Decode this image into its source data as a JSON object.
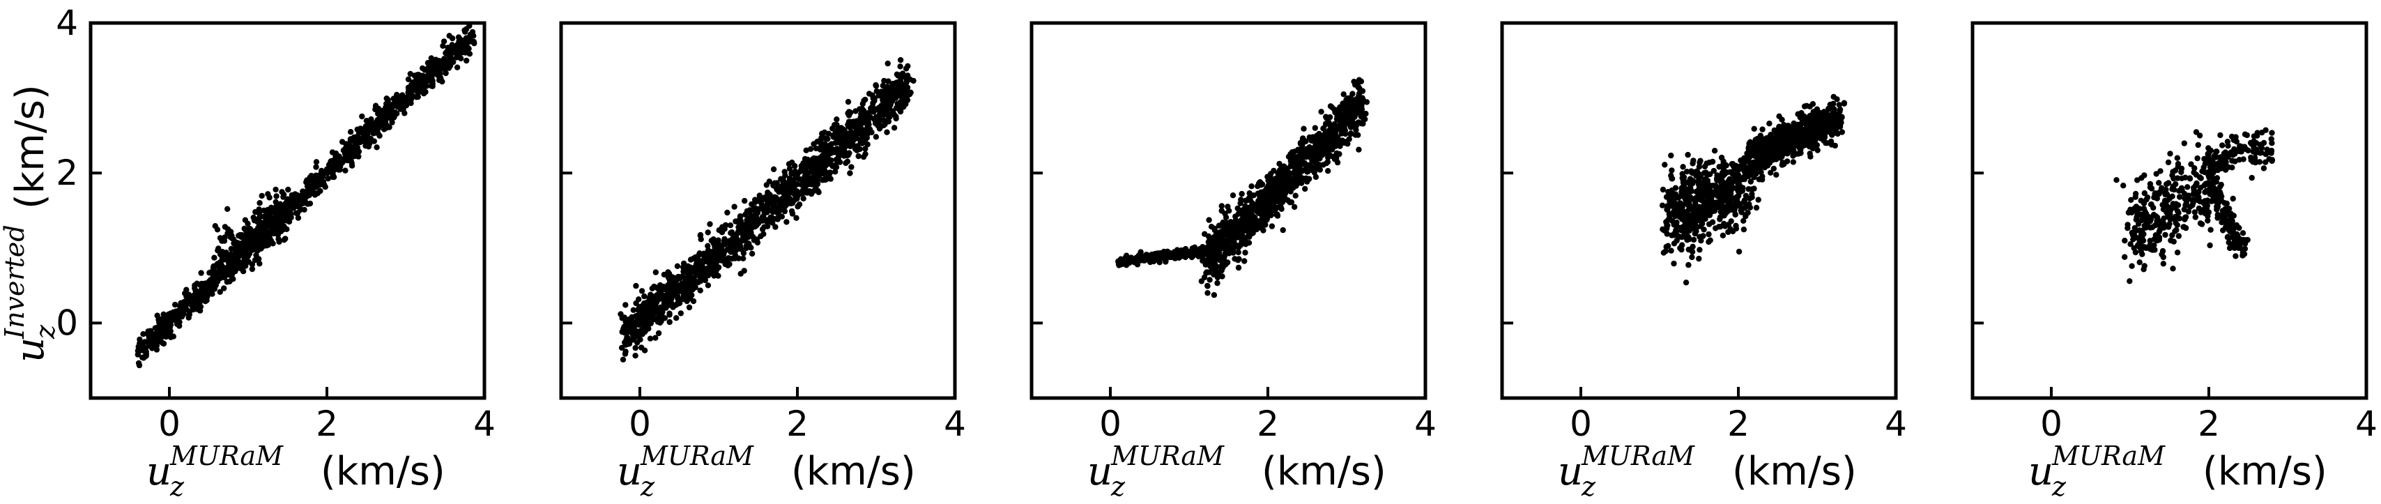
{
  "chart_data": [
    {
      "type": "scatter",
      "panel": 1,
      "xlim": [
        -1,
        4
      ],
      "ylim": [
        -1,
        4
      ],
      "xticks": [
        "0",
        "2",
        "4"
      ],
      "yticks": [
        "0",
        "2",
        "4"
      ],
      "xlabel": {
        "symbol": "u",
        "superscript": "MURaM",
        "subscript": "z",
        "unit": "(km/s)"
      },
      "ylabel": {
        "symbol": "u",
        "superscript": "Inverted",
        "subscript": "z",
        "unit": "(km/s)"
      },
      "grid": false,
      "seed": 11,
      "n_points": 1400,
      "pattern": [
        {
          "x0": -0.4,
          "x1": 3.85,
          "slope": 1.0,
          "offset": 0.0,
          "spread": 0.09,
          "weight": 0.85
        },
        {
          "x0": 0.6,
          "x1": 1.5,
          "slope": 0.8,
          "offset": 0.3,
          "spread": 0.18,
          "weight": 0.15
        }
      ],
      "points": [
        [
          -0.4,
          -0.42
        ],
        [
          -0.2,
          -0.25
        ],
        [
          0.0,
          0.0
        ],
        [
          0.3,
          0.28
        ],
        [
          0.6,
          0.55
        ],
        [
          0.9,
          0.95
        ],
        [
          1.15,
          1.25
        ],
        [
          1.25,
          1.72
        ],
        [
          1.35,
          1.78
        ],
        [
          1.5,
          1.6
        ],
        [
          1.8,
          1.85
        ],
        [
          2.0,
          2.05
        ],
        [
          2.3,
          2.3
        ],
        [
          2.6,
          2.55
        ],
        [
          2.9,
          2.9
        ],
        [
          3.2,
          3.2
        ],
        [
          3.5,
          3.5
        ],
        [
          3.85,
          3.88
        ]
      ]
    },
    {
      "type": "scatter",
      "panel": 2,
      "xlim": [
        -1,
        4
      ],
      "ylim": [
        -1,
        4
      ],
      "xticks": [
        "0",
        "2",
        "4"
      ],
      "yticks": [],
      "xlabel": {
        "symbol": "u",
        "superscript": "MURaM",
        "subscript": "z",
        "unit": "(km/s)"
      },
      "grid": false,
      "seed": 23,
      "n_points": 1300,
      "pattern": [
        {
          "x0": -0.2,
          "x1": 3.4,
          "slope": 0.93,
          "offset": 0.0,
          "spread": 0.16,
          "weight": 1.0
        }
      ],
      "points": [
        [
          -0.2,
          -0.05
        ],
        [
          0.0,
          0.2
        ],
        [
          0.3,
          0.45
        ],
        [
          0.6,
          0.75
        ],
        [
          1.0,
          1.05
        ],
        [
          1.2,
          1.55
        ],
        [
          1.5,
          1.5
        ],
        [
          1.7,
          2.05
        ],
        [
          2.0,
          1.85
        ],
        [
          2.3,
          2.35
        ],
        [
          2.6,
          2.5
        ],
        [
          2.9,
          2.8
        ],
        [
          3.2,
          3.05
        ],
        [
          3.4,
          3.3
        ]
      ]
    },
    {
      "type": "scatter",
      "panel": 3,
      "xlim": [
        -1,
        4
      ],
      "ylim": [
        -1,
        4
      ],
      "xticks": [
        "0",
        "2",
        "4"
      ],
      "yticks": [],
      "xlabel": {
        "symbol": "u",
        "superscript": "MURaM",
        "subscript": "z",
        "unit": "(km/s)"
      },
      "grid": false,
      "seed": 37,
      "n_points": 1200,
      "pattern": [
        {
          "x0": 0.1,
          "x1": 1.2,
          "curve": "flat",
          "y0": 0.82,
          "y1": 0.95,
          "spread": 0.03,
          "weight": 0.2
        },
        {
          "x0": 1.2,
          "x1": 3.2,
          "slope": 1.05,
          "offset": -0.45,
          "spread": 0.17,
          "weight": 0.8
        }
      ],
      "points": [
        [
          0.1,
          0.82
        ],
        [
          0.5,
          0.84
        ],
        [
          0.9,
          0.9
        ],
        [
          1.2,
          1.0
        ],
        [
          1.5,
          1.3
        ],
        [
          1.8,
          1.6
        ],
        [
          2.0,
          1.95
        ],
        [
          2.3,
          2.25
        ],
        [
          2.6,
          2.6
        ],
        [
          2.9,
          2.85
        ],
        [
          3.2,
          3.0
        ]
      ]
    },
    {
      "type": "scatter",
      "panel": 4,
      "xlim": [
        -1,
        4
      ],
      "ylim": [
        -1,
        4
      ],
      "xticks": [
        "0",
        "2",
        "4"
      ],
      "yticks": [],
      "xlabel": {
        "symbol": "u",
        "superscript": "MURaM",
        "subscript": "z",
        "unit": "(km/s)"
      },
      "grid": false,
      "seed": 53,
      "n_points": 1150,
      "pattern": [
        {
          "x0": 1.1,
          "x1": 2.1,
          "slope": 0.35,
          "offset": 1.05,
          "spread": 0.28,
          "weight": 0.45
        },
        {
          "x0": 2.1,
          "x1": 3.3,
          "slope": 0.45,
          "offset": 1.25,
          "spread": 0.14,
          "weight": 0.55
        }
      ],
      "points": [
        [
          1.1,
          1.3
        ],
        [
          1.3,
          1.9
        ],
        [
          1.5,
          1.4
        ],
        [
          1.8,
          2.1
        ],
        [
          2.0,
          1.6
        ],
        [
          2.2,
          2.3
        ],
        [
          2.5,
          2.55
        ],
        [
          2.8,
          2.8
        ],
        [
          3.0,
          2.85
        ],
        [
          3.3,
          2.7
        ]
      ]
    },
    {
      "type": "scatter",
      "panel": 5,
      "xlim": [
        -1,
        4
      ],
      "ylim": [
        -1,
        4
      ],
      "xticks": [
        "0",
        "2",
        "4"
      ],
      "yticks": [],
      "xlabel": {
        "symbol": "u",
        "superscript": "MURaM",
        "subscript": "z",
        "unit": "(km/s)"
      },
      "grid": false,
      "seed": 71,
      "n_points": 520,
      "pattern": [
        {
          "x0": 1.0,
          "x1": 2.0,
          "slope": 0.6,
          "offset": 0.65,
          "spread": 0.3,
          "weight": 0.6
        },
        {
          "x0": 2.0,
          "x1": 2.8,
          "slope": 0.3,
          "offset": 1.55,
          "spread": 0.12,
          "weight": 0.2
        },
        {
          "x0": 2.0,
          "x1": 2.45,
          "slope": -2.2,
          "offset": 6.3,
          "spread": 0.15,
          "weight": 0.2
        }
      ],
      "points": [
        [
          1.0,
          1.5
        ],
        [
          1.2,
          1.0
        ],
        [
          1.4,
          1.8
        ],
        [
          1.6,
          2.2
        ],
        [
          1.8,
          1.6
        ],
        [
          2.0,
          2.15
        ],
        [
          2.2,
          1.6
        ],
        [
          2.4,
          1.0
        ],
        [
          2.5,
          2.3
        ],
        [
          2.8,
          2.4
        ]
      ]
    }
  ]
}
